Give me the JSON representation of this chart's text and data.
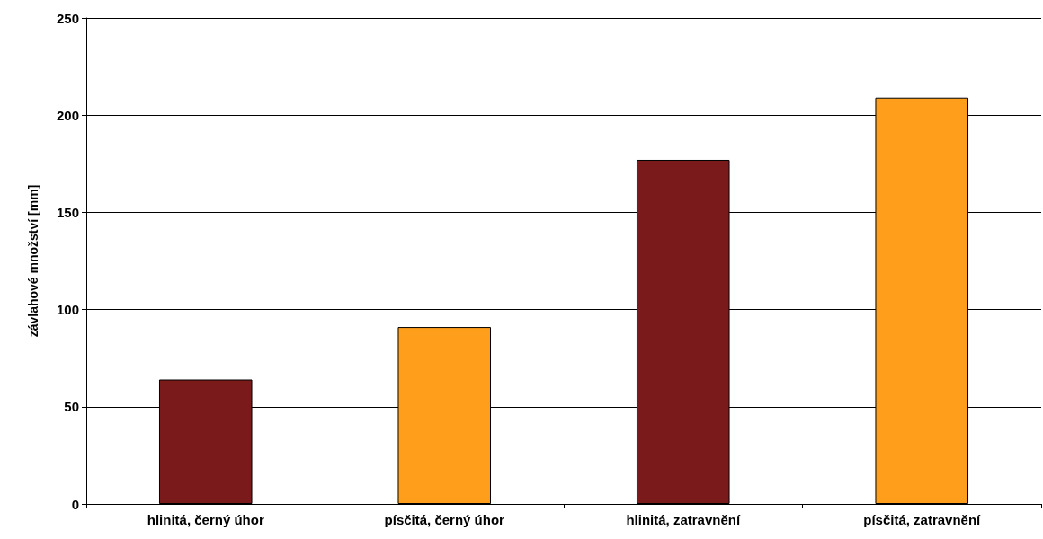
{
  "chart_data": {
    "type": "bar",
    "ylabel": "závlahové množství [mm]",
    "categories": [
      "hlinitá, černý úhor",
      "písčitá, černý úhor",
      "hlinitá, zatravnění",
      "písčitá, zatravnění"
    ],
    "values": [
      64,
      91,
      177,
      209
    ],
    "colors": [
      "#7b1a1a",
      "#ff9e1a",
      "#7b1a1a",
      "#ff9e1a"
    ],
    "ylim": [
      0,
      250
    ],
    "yticks": [
      0,
      50,
      100,
      150,
      200,
      250
    ],
    "grid": "y"
  }
}
